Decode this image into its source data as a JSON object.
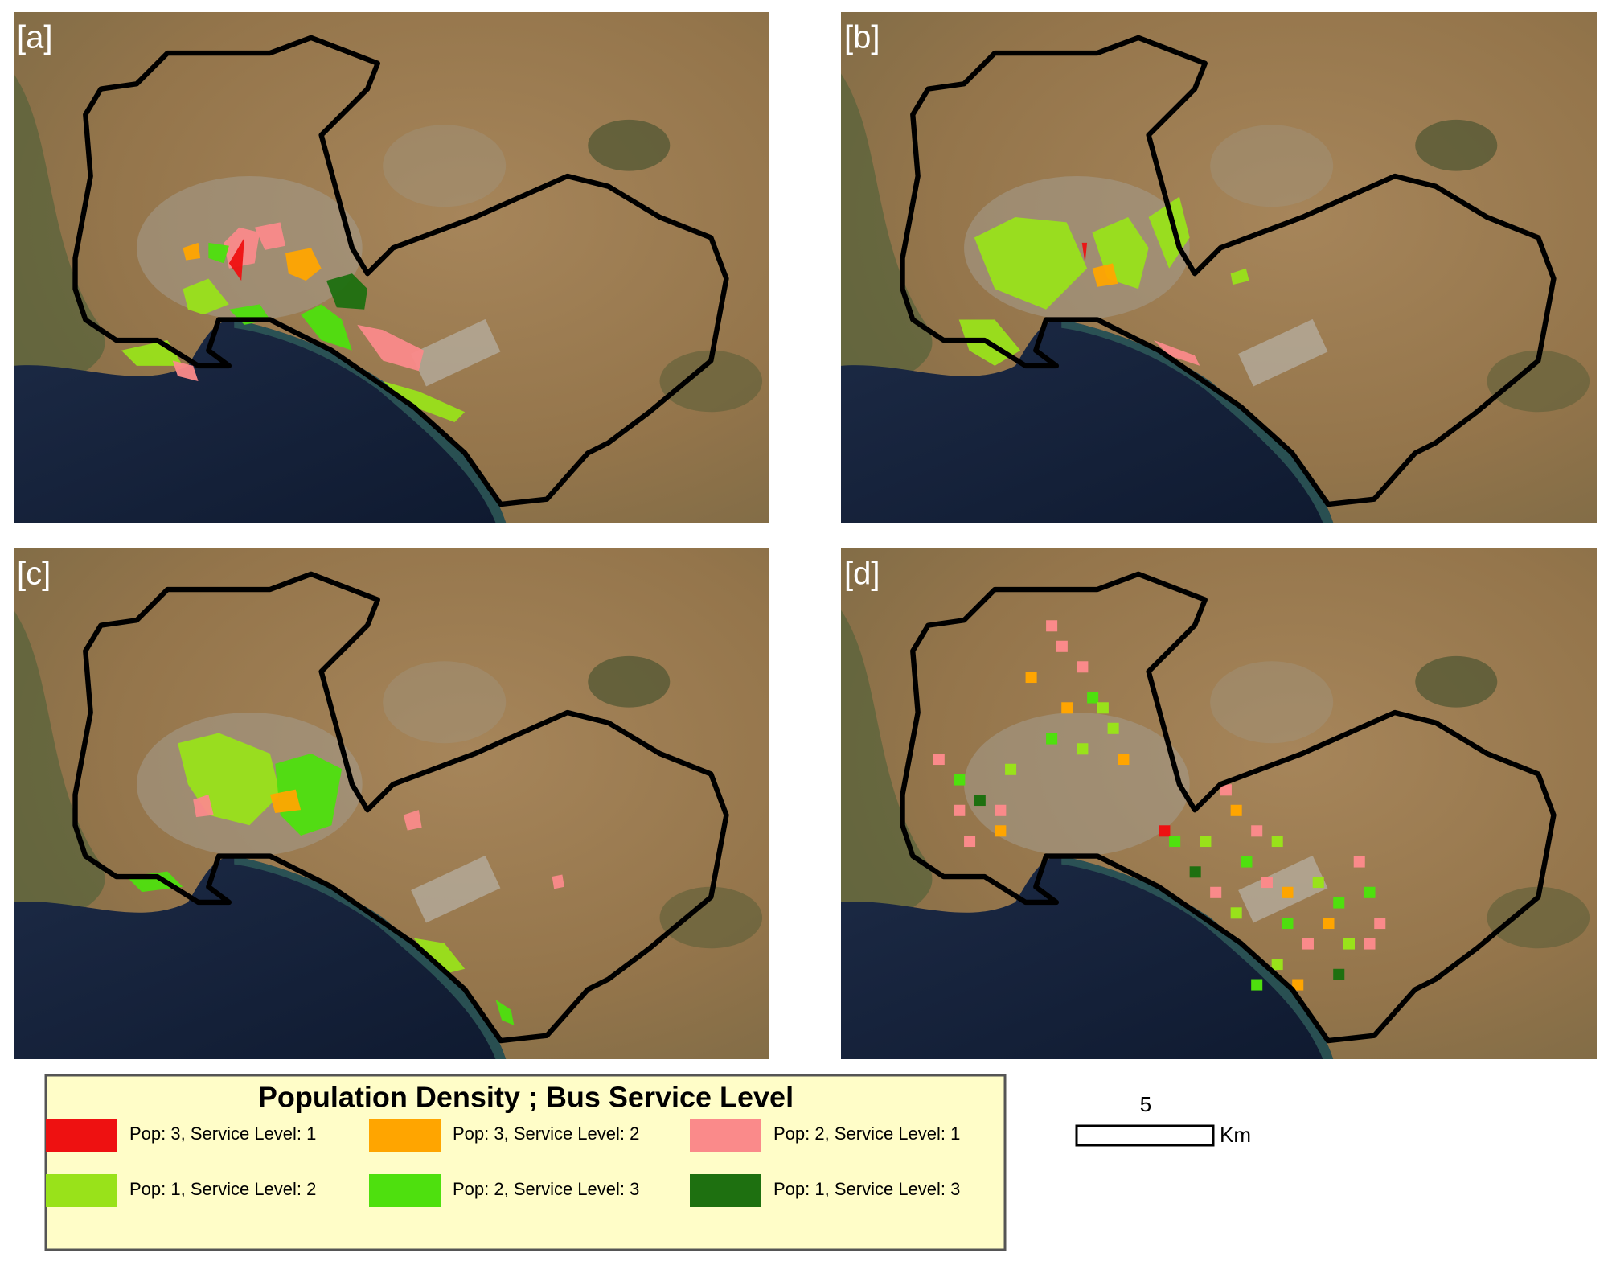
{
  "panels": [
    {
      "label": "[a]"
    },
    {
      "label": "[b]"
    },
    {
      "label": "[c]"
    },
    {
      "label": "[d]"
    }
  ],
  "legend": {
    "title": "Population Density ; Bus Service Level",
    "items": [
      {
        "label": "Pop: 3, Service Level: 1",
        "color": "#ee1111"
      },
      {
        "label": "Pop: 3, Service Level: 2",
        "color": "#ffa500"
      },
      {
        "label": "Pop: 2, Service Level: 1",
        "color": "#fa8a8a"
      },
      {
        "label": "Pop: 1, Service Level: 2",
        "color": "#99e21a"
      },
      {
        "label": "Pop: 2, Service Level: 3",
        "color": "#4ee00e"
      },
      {
        "label": "Pop: 1, Service Level: 3",
        "color": "#1e7010"
      }
    ]
  },
  "scale_bar": {
    "distance": "5",
    "unit": "Km"
  }
}
